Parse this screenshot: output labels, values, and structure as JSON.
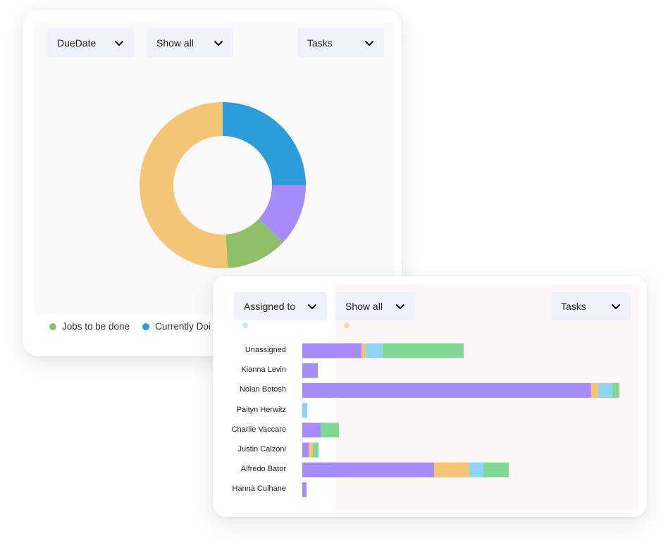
{
  "donut_card": {
    "filters": [
      {
        "label": "DueDate",
        "icon": "chevron-down-icon"
      },
      {
        "label": "Show all",
        "icon": "chevron-down-icon"
      },
      {
        "label": "Tasks",
        "icon": "chevron-down-icon"
      }
    ],
    "legend": [
      {
        "label": "Jobs to be done",
        "color": "#8fbf69"
      },
      {
        "label": "Currently Doi",
        "color": "#2d9cdb"
      }
    ]
  },
  "bars_card": {
    "filters": [
      {
        "label": "Assigned to",
        "icon": "chevron-down-icon"
      },
      {
        "label": "Show all",
        "icon": "chevron-down-icon"
      },
      {
        "label": "Tasks",
        "icon": "chevron-down-icon"
      }
    ]
  },
  "chart_data": [
    {
      "type": "pie",
      "donut": true,
      "series_colors": [
        "#2d9cdb",
        "#a78bfa",
        "#8fbf69",
        "#f5c577"
      ],
      "values": [
        25,
        12,
        12,
        51
      ]
    },
    {
      "type": "bar",
      "orientation": "horizontal",
      "stacked": true,
      "categories": [
        "Unassigned",
        "Kianna Levin",
        "Nolan Botosh",
        "Paityn Herwitz",
        "Charlie Vaccaro",
        "Justin Calzoni",
        "Alfredo Bator",
        "Hanna Culhane"
      ],
      "series": [
        {
          "color": "#a78bfa",
          "values": [
            84,
            22,
            410,
            0,
            26,
            9,
            187,
            6
          ]
        },
        {
          "color": "#f5c577",
          "values": [
            6,
            0,
            10,
            0,
            0,
            6,
            50,
            0
          ]
        },
        {
          "color": "#8fd4f5",
          "values": [
            24,
            0,
            20,
            7,
            0,
            0,
            20,
            0
          ]
        },
        {
          "color": "#80d895",
          "values": [
            115,
            0,
            10,
            0,
            26,
            8,
            36,
            0
          ]
        }
      ],
      "xlim": [
        0,
        450
      ]
    }
  ]
}
